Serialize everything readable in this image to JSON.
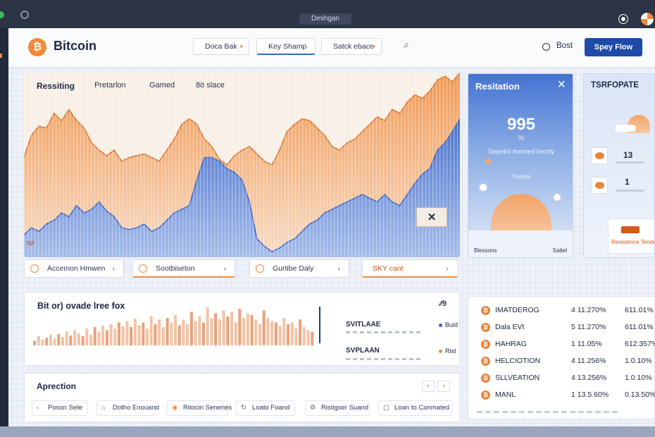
{
  "window": {
    "title": "Deshgan"
  },
  "header": {
    "brand": "Bitcoin",
    "logo_glyph": "₿",
    "dropdowns": [
      {
        "label": "Doca Bak"
      },
      {
        "label": "Key Shamp"
      },
      {
        "label": "Satck ebace"
      }
    ],
    "radio_label": "Bost",
    "primary_button": "Spey Flow"
  },
  "main_chart": {
    "tabs": [
      "Ressiting",
      "Pretarlon",
      "Gamed",
      "8ö slace"
    ],
    "close_glyph": "✕",
    "corner_label": "8Ø"
  },
  "quick_actions": [
    {
      "label": "Accemon Hmwen",
      "icon": "clock-icon"
    },
    {
      "label": "Sootbiseton",
      "icon": "alert-icon"
    },
    {
      "label": "Gurtibe Daly",
      "icon": "refresh-icon"
    },
    {
      "label": "SKY cant",
      "icon": "none"
    }
  ],
  "resitation": {
    "title": "Resitation",
    "value": "995",
    "sub": "%",
    "desc": "Sepekd thented bectly",
    "tip": "Tiepste",
    "bottom_left": "Blessons",
    "bottom_right": "Sattel"
  },
  "tsr": {
    "title": "TSRFOPATE",
    "n1": "13",
    "n2": "1",
    "card_label": "Resistence Tendesp"
  },
  "bar_panel": {
    "title": "Bit or) ovade lree fox",
    "corner": "⁄⁄9",
    "legend": [
      {
        "label": "SVITLAAE",
        "tag": "Buid"
      },
      {
        "label": "SVPLAAN",
        "tag": "Rist"
      }
    ]
  },
  "apx": {
    "title": "Aprection",
    "nav_prev": "‹",
    "nav_next": "›",
    "actions": [
      {
        "label": "Poson Sete",
        "icon": "‹"
      },
      {
        "label": "Dotho Enouand",
        "icon": "⌂"
      },
      {
        "label": "Ritocin Seneries",
        "icon": "◉"
      },
      {
        "label": "Loato Foand",
        "icon": "↻"
      },
      {
        "label": "Ristigser Suand",
        "icon": "⚙"
      },
      {
        "label": "Loan to Conmated",
        "icon": "▢"
      }
    ]
  },
  "assets": {
    "rows": [
      {
        "name": "IMATDEROG",
        "v1": "4 11.270%",
        "v2": "611.01%"
      },
      {
        "name": "Dala EVt",
        "v1": "5 11.270%",
        "v2": "611.01%"
      },
      {
        "name": "HAHRAG",
        "v1": "1 11.05%",
        "v2": "612.357%"
      },
      {
        "name": "HELCIOTION",
        "v1": "4 11.256%",
        "v2": "1.0.10%"
      },
      {
        "name": "SLLVEATION",
        "v1": "4 13.256%",
        "v2": "1.0.10%"
      },
      {
        "name": "MANL",
        "v1": "1 13.5.60%",
        "v2": "0.13.50%"
      }
    ]
  },
  "chart_data": {
    "type": "area",
    "series": [
      {
        "values": [
          54,
          66,
          71,
          70,
          78,
          74,
          80,
          74,
          70,
          62,
          58,
          55,
          58,
          52,
          54,
          55,
          56,
          54,
          52,
          58,
          64,
          72,
          75,
          72,
          64,
          60,
          53,
          50,
          55,
          58,
          60,
          56,
          52,
          50,
          58,
          68,
          72,
          75,
          74,
          70,
          66,
          60,
          58,
          62,
          64,
          68,
          72,
          76,
          74,
          80,
          78,
          84,
          88,
          86,
          90,
          96,
          98,
          95,
          100
        ]
      },
      {
        "values": [
          12,
          16,
          14,
          18,
          20,
          24,
          22,
          28,
          24,
          26,
          30,
          25,
          22,
          16,
          15,
          16,
          18,
          14,
          16,
          20,
          24,
          26,
          28,
          42,
          54,
          54,
          52,
          48,
          46,
          42,
          30,
          10,
          6,
          3,
          5,
          8,
          10,
          14,
          18,
          20,
          24,
          26,
          28,
          30,
          32,
          34,
          32,
          30,
          34,
          30,
          28,
          34,
          40,
          45,
          48,
          58,
          62,
          68,
          75
        ]
      }
    ],
    "bars_values": [
      6,
      12,
      8,
      10,
      14,
      9,
      15,
      11,
      18,
      13,
      20,
      16,
      12,
      22,
      14,
      24,
      18,
      26,
      20,
      28,
      22,
      30,
      25,
      32,
      24,
      35,
      26,
      30,
      22,
      38,
      28,
      34,
      24,
      36,
      30,
      40,
      26,
      34,
      28,
      44,
      32,
      38,
      30,
      50,
      36,
      42,
      34,
      46,
      38,
      44,
      30,
      48,
      36,
      42,
      40,
      34,
      28,
      46,
      36,
      32,
      30,
      26,
      36,
      28,
      30,
      22,
      34,
      24,
      20,
      18
    ]
  }
}
